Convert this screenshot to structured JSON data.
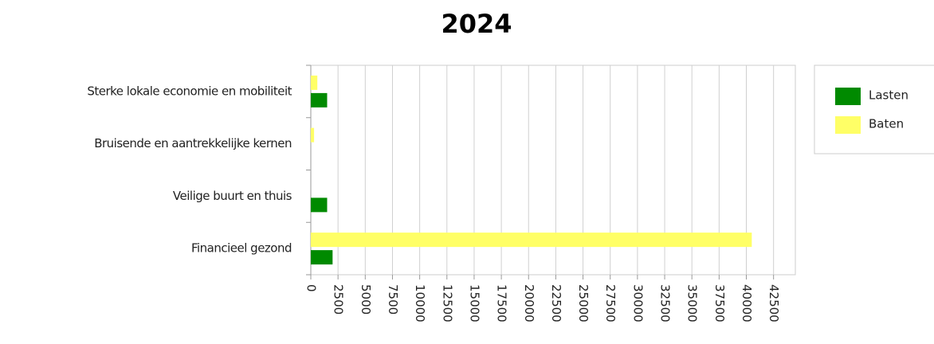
{
  "chart_data": {
    "type": "hbar",
    "title": "2024",
    "categories": [
      "Sterke lokale economie en mobiliteit",
      "Bruisende en aantrekkelijke kernen",
      "Veilige buurt en thuis",
      "Financieel gezond"
    ],
    "series": [
      {
        "name": "Lasten",
        "color": "#008a00",
        "values": [
          1500,
          0,
          1500,
          2000
        ]
      },
      {
        "name": "Baten",
        "color": "#ffff66",
        "values": [
          600,
          300,
          0,
          40500
        ]
      }
    ],
    "xlim": [
      0,
      44500
    ],
    "xticks": [
      0,
      2500,
      5000,
      7500,
      10000,
      12500,
      15000,
      17500,
      20000,
      22500,
      25000,
      27500,
      30000,
      32500,
      35000,
      37500,
      40000,
      42500
    ],
    "grid": true,
    "legend": "right"
  }
}
